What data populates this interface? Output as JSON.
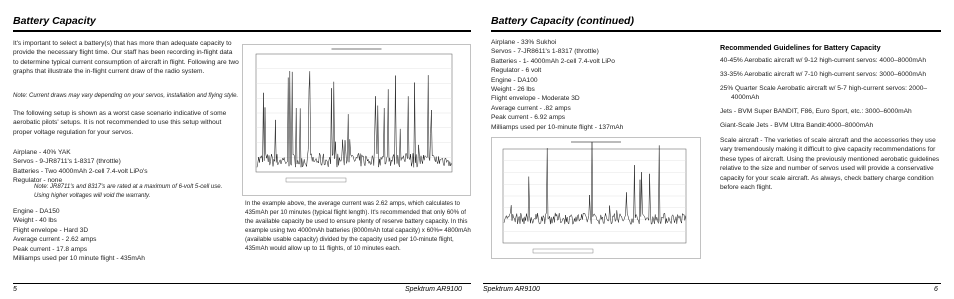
{
  "left_page": {
    "heading": "Battery Capacity",
    "intro": "It's important to select a battery(s) that has more than adequate capacity to provide the necessary flight time. Our staff has been recording in-flight data to determine typical current consumption of aircraft in flight. Following are two graphs that illustrate the in-flight current draw of the radio system.",
    "note": "Note: Current draws may vary depending on your servos, installation and flying style.",
    "setup_intro": "The following setup is shown as a worst case scenario indicative of some aerobatic pilots' setups. It is not recommended to use this setup without proper voltage regulation for your servos.",
    "setup": [
      "Airplane - 40% YAK",
      "Servos - 9-JR8711's 1-8317 (throttle)",
      "Batteries - Two 4000mAh 2-cell 7.4-volt LiPo's",
      "Regulator - none"
    ],
    "setup_note": "Note: JR8711's and 8317's are rated at a maximum of 6-volt 5-cell use. Using higher voltages will void the warranty.",
    "results": [
      "Engine - DA150",
      "Weight - 40 lbs",
      "Flight envelope - Hard 3D",
      "Average current - 2.62 amps",
      "Peak current - 17.8 amps",
      "Milliamps used per 10 minute flight - 435mAh"
    ],
    "explanation": "In the example above, the average current was 2.62 amps, which calculates to 435mAh per 10 minutes (typical flight length). It's recommended that only 60% of the available capacity be used to ensure plenty of reserve battery capacity. In this example using two 4000mAh batteries (8000mAh total capacity) x 60%= 4800mAh (available usable capacity) divided by the capacity used per 10-minute flight, 435mAh would allow up to 11 flights, of 10 minutes each.",
    "footer": {
      "page_number": "5",
      "title": "Spektrum AR9100"
    }
  },
  "right_page": {
    "heading": "Battery Capacity (continued)",
    "setup": [
      "Airplane - 33% Sukhoi",
      "Servos - 7-JR8611's 1-8317 (throttle)",
      "Batteries - 1- 4000mAh 2-cell 7.4-volt LiPo",
      "Regulator - 6 volt",
      "Engine - DA100",
      "Weight - 26 lbs",
      "Flight envelope - Moderate 3D",
      "Average current - .82 amps",
      "Peak current - 6.92 amps",
      "Milliamps used per 10-minute flight - 137mAh"
    ],
    "guidelines": {
      "title": "Recommended Guidelines for Battery Capacity",
      "items": [
        "40-45% Aerobatic aircraft w/ 9-12 high-current servos: 4000–8000mAh",
        "33-35% Aerobatic aircraft w/ 7-10 high-current servos: 3000–6000mAh",
        "25% Quarter Scale Aerobatic aircraft w/ 5-7 high-current servos: 2000–4000mAh",
        "Jets - BVM Super BANDIT, F86, Euro Sport, etc.: 3000–6000mAh",
        "Giant-Scale Jets - BVM Ultra Bandit:4000–8000mAh"
      ]
    },
    "scale_note": "Scale aircraft - The varieties of scale aircraft and the accessories they use vary tremendously making it difficult to give capacity recommendations for these types of aircraft. Using the previously mentioned aerobatic guidelines relative to the size and number of servos used will provide a conservative capacity for your scale aircraft. As always, check battery charge condition before each flight.",
    "footer": {
      "title": "Spektrum AR9100",
      "page_number": "6"
    }
  }
}
